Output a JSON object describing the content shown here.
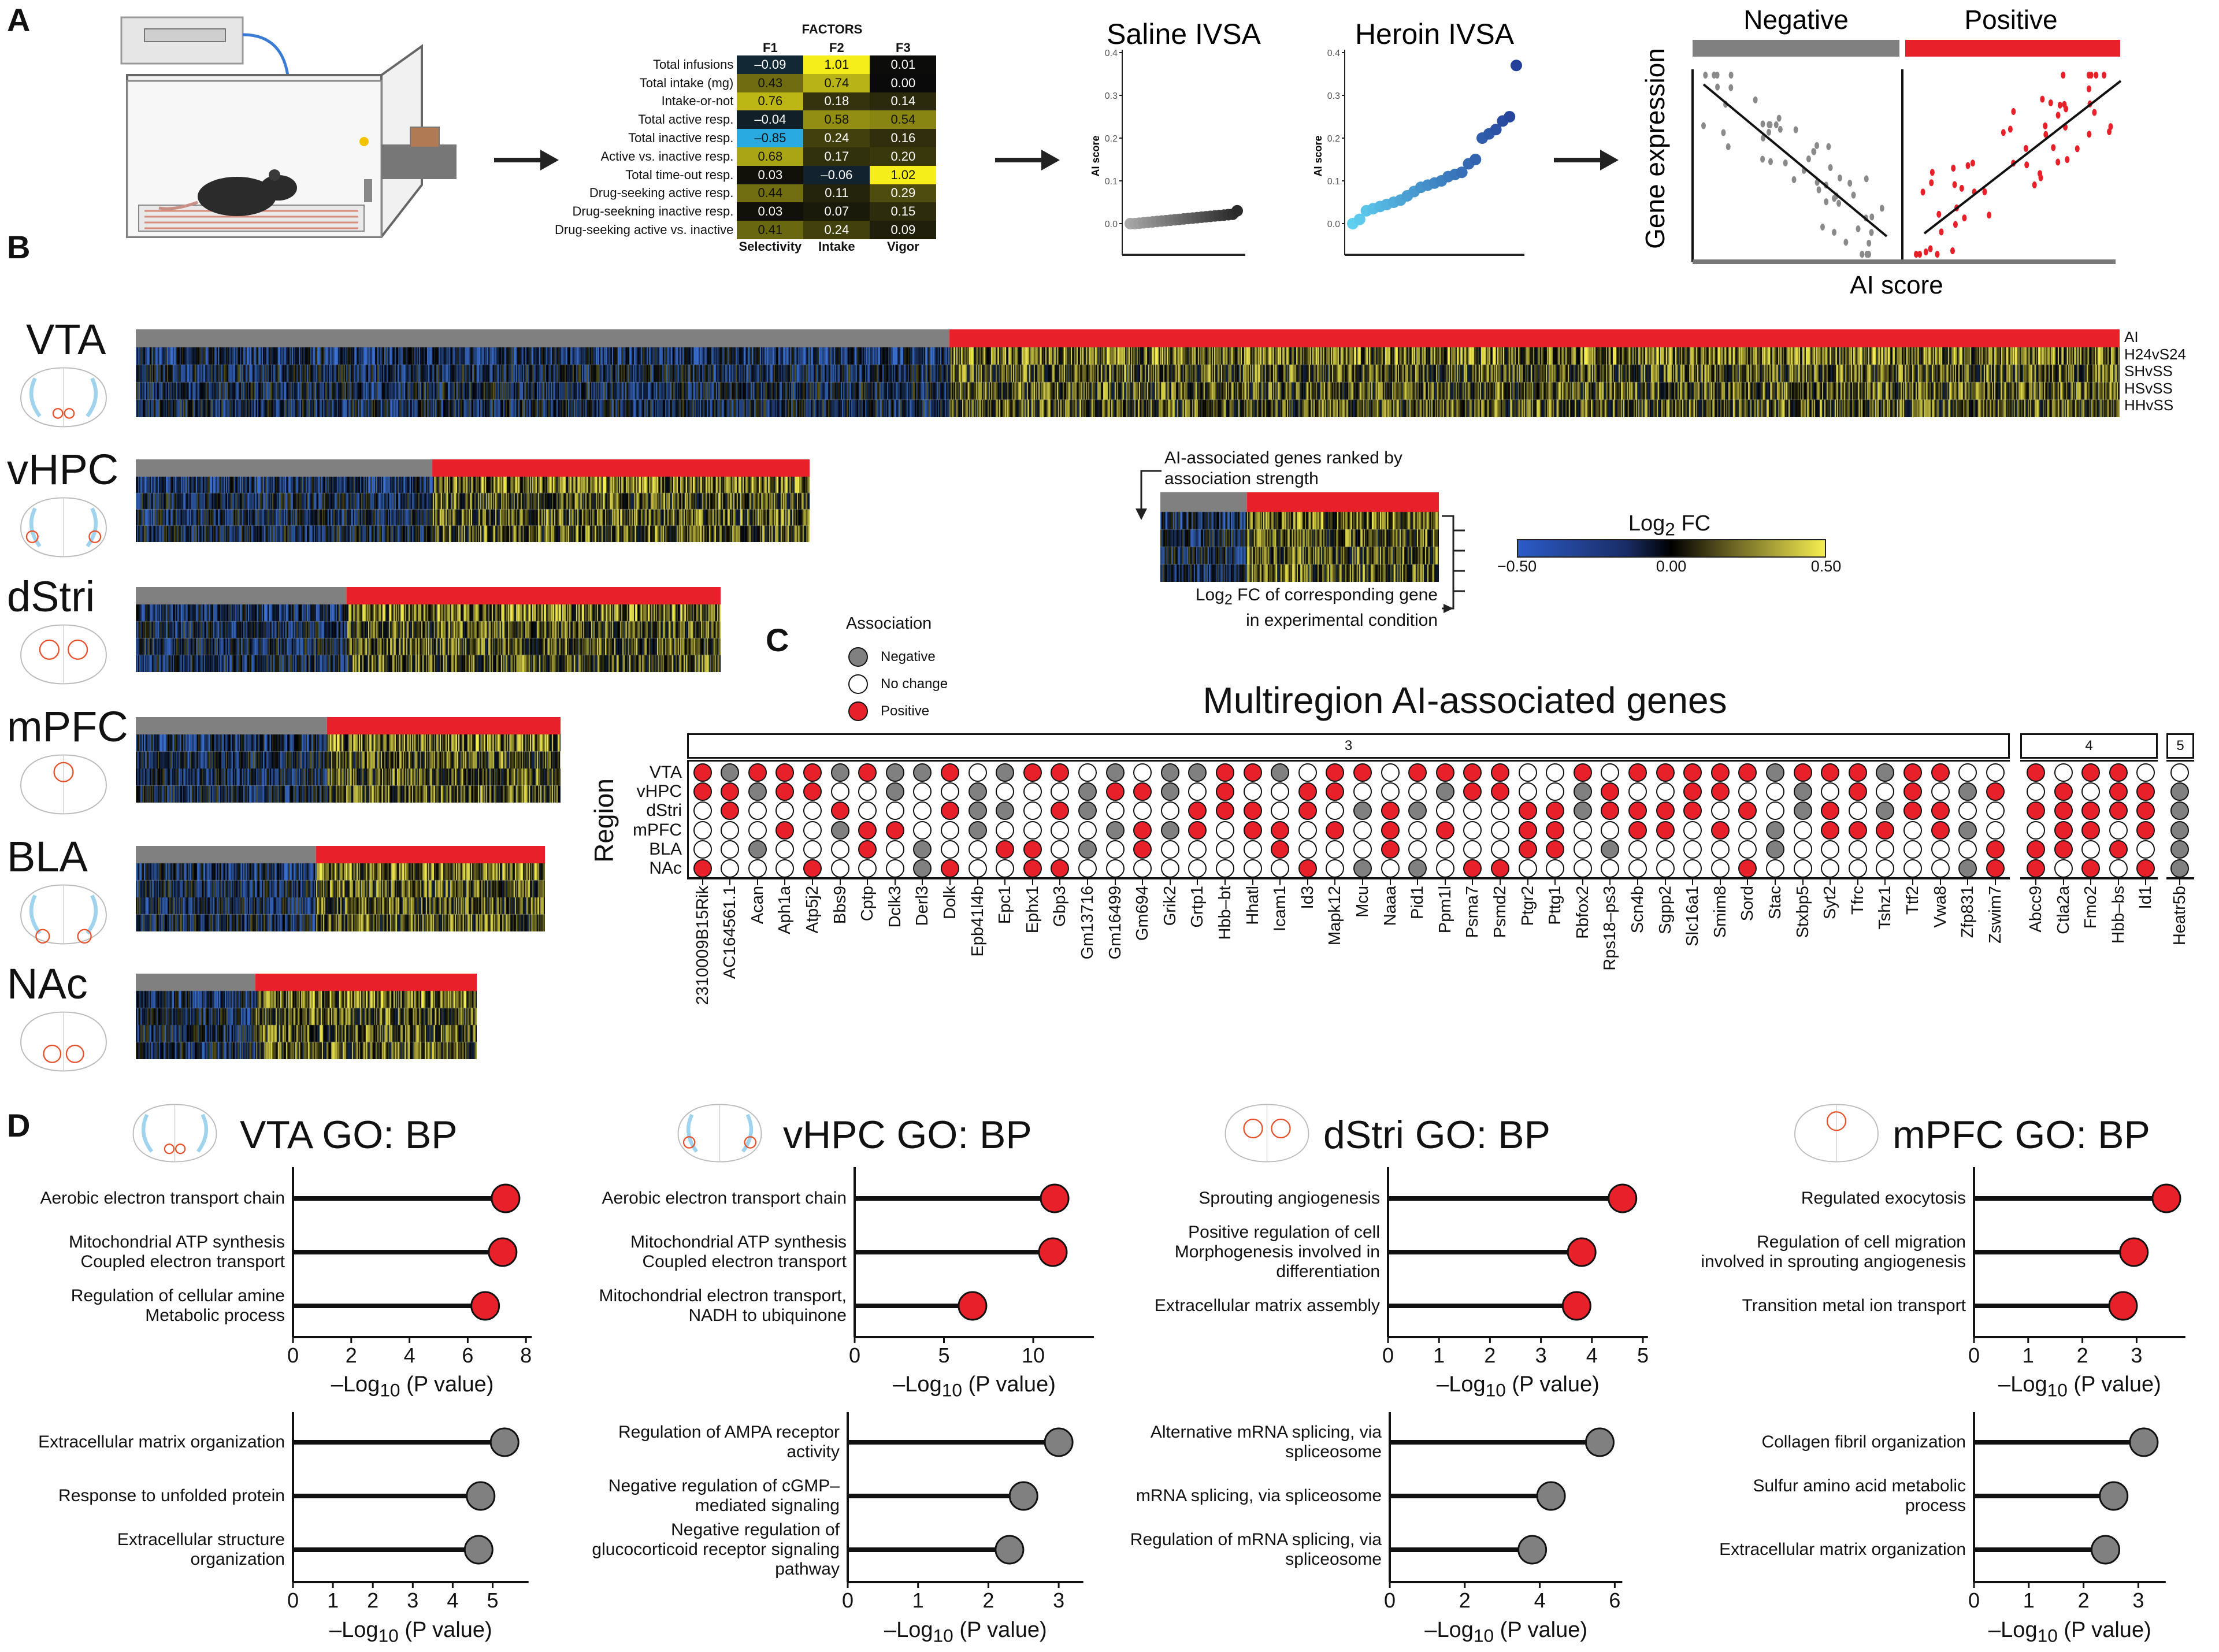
{
  "panel_labels": {
    "a": "A",
    "b": "B",
    "c": "C",
    "d": "D"
  },
  "colors": {
    "positive": "#e8202a",
    "negative": "#808080",
    "no_change": "#ffffff",
    "heat_low": "#3b6fd0",
    "heat_mid": "#000000",
    "heat_high": "#f5ee50"
  },
  "factors": {
    "title": "FACTORS",
    "columns": [
      "F1",
      "F2",
      "F3"
    ],
    "factor_names": [
      "Selectivity",
      "Intake",
      "Vigor"
    ],
    "rows": [
      {
        "label": "Total infusions",
        "values": [
          -0.09,
          1.01,
          0.01
        ]
      },
      {
        "label": "Total intake (mg)",
        "values": [
          0.43,
          0.74,
          0.0
        ]
      },
      {
        "label": "Intake-or-not",
        "values": [
          0.76,
          0.18,
          0.14
        ]
      },
      {
        "label": "Total active resp.",
        "values": [
          -0.04,
          0.58,
          0.54
        ]
      },
      {
        "label": "Total inactive resp.",
        "values": [
          -0.85,
          0.24,
          0.16
        ]
      },
      {
        "label": "Active vs. inactive resp.",
        "values": [
          0.68,
          0.17,
          0.2
        ]
      },
      {
        "label": "Total time-out resp.",
        "values": [
          0.03,
          -0.06,
          1.02
        ]
      },
      {
        "label": "Drug-seeking active resp.",
        "values": [
          0.44,
          0.11,
          0.29
        ]
      },
      {
        "label": "Drug-seekning inactive resp.",
        "values": [
          0.03,
          0.07,
          0.15
        ]
      },
      {
        "label": "Drug-seeking active vs. inactive",
        "values": [
          0.41,
          0.24,
          0.09
        ]
      }
    ]
  },
  "schematic": {
    "negative_label": "Negative",
    "positive_label": "Positive",
    "y_label": "Gene expression",
    "x_label": "AI score"
  },
  "heatmap_legend": {
    "ranked_line1": "AI-associated genes ranked by",
    "ranked_line2": "association strength",
    "fc_line1_prefix": "Log",
    "fc_line1_sub": "2",
    "fc_line1_suffix": " FC of corresponding gene",
    "fc_line2": "in experimental condition",
    "colorbar_title_prefix": "Log",
    "colorbar_title_sub": "2",
    "colorbar_title_suffix": " FC",
    "colorbar_ticks": [
      "−0.50",
      "0.00",
      "0.50"
    ]
  },
  "heatmaps": [
    {
      "region": "VTA",
      "negative_fraction": 0.41,
      "row_labels": [
        "AI",
        "H24vS24",
        "SHvSS",
        "HSvSS",
        "HHvSS"
      ]
    },
    {
      "region": "vHPC",
      "negative_fraction": 0.44
    },
    {
      "region": "dStri",
      "negative_fraction": 0.36
    },
    {
      "region": "mPFC",
      "negative_fraction": 0.45
    },
    {
      "region": "BLA",
      "negative_fraction": 0.44
    },
    {
      "region": "NAc",
      "negative_fraction": 0.35
    }
  ],
  "chart_data": [
    {
      "type": "scatter",
      "title": "Saline IVSA",
      "ylabel": "AI score",
      "yticks": [
        "0.0",
        "0.1",
        "0.2",
        "0.3",
        "0.4"
      ],
      "ylim": [
        -0.03,
        0.42
      ],
      "values": [
        0.0,
        0.0,
        0.001,
        0.002,
        0.003,
        0.004,
        0.005,
        0.006,
        0.007,
        0.008,
        0.009,
        0.01,
        0.011,
        0.012,
        0.013,
        0.014,
        0.015,
        0.016,
        0.017,
        0.018,
        0.019,
        0.02,
        0.021,
        0.022,
        0.03
      ]
    },
    {
      "type": "scatter",
      "title": "Heroin IVSA",
      "ylabel": "AI score",
      "yticks": [
        "0.0",
        "0.1",
        "0.2",
        "0.3",
        "0.4"
      ],
      "ylim": [
        -0.03,
        0.42
      ],
      "values": [
        0.0,
        0.01,
        0.03,
        0.035,
        0.04,
        0.045,
        0.05,
        0.055,
        0.065,
        0.075,
        0.085,
        0.09,
        0.095,
        0.1,
        0.11,
        0.115,
        0.12,
        0.14,
        0.15,
        0.2,
        0.21,
        0.22,
        0.24,
        0.25,
        0.37
      ]
    },
    {
      "type": "table",
      "title": "Multiregion AI-associated genes",
      "ylabel": "Region",
      "legend": {
        "title": "Association",
        "items": [
          {
            "label": "Negative",
            "state": "G"
          },
          {
            "label": "No change",
            "state": "W"
          },
          {
            "label": "Positive",
            "state": "R"
          }
        ]
      },
      "regions": [
        "VTA",
        "vHPC",
        "dStri",
        "mPFC",
        "BLA",
        "NAc"
      ],
      "state_order": "VTA,vHPC,dStri,mPFC,BLA,NAc; R=Positive G=Negative W=No change",
      "groups": [
        {
          "label": "3",
          "genes": [
            {
              "gene": "2310009B15Rik",
              "states": "RRWWWR"
            },
            {
              "gene": "AC164561.1",
              "states": "GRRWWW"
            },
            {
              "gene": "Acan",
              "states": "RGWWGW"
            },
            {
              "gene": "Aph1a",
              "states": "RRWRWW"
            },
            {
              "gene": "Atp5j2",
              "states": "RRWWWR"
            },
            {
              "gene": "Bbs9",
              "states": "GWRGWW"
            },
            {
              "gene": "Cptp",
              "states": "RWWRRW"
            },
            {
              "gene": "Dclk3",
              "states": "GGWRWW"
            },
            {
              "gene": "Derl3",
              "states": "GWWWGG"
            },
            {
              "gene": "Dolk",
              "states": "RWRWWR"
            },
            {
              "gene": "Epb41l4b",
              "states": "WGGGWW"
            },
            {
              "gene": "Epc1",
              "states": "GWGWRW"
            },
            {
              "gene": "Ephx1",
              "states": "RWWWRR"
            },
            {
              "gene": "Gbp3",
              "states": "RWRWWR"
            },
            {
              "gene": "Gm13716",
              "states": "WGGWGW"
            },
            {
              "gene": "Gm16499",
              "states": "GRWGWW"
            },
            {
              "gene": "Gm694",
              "states": "WRWRRW"
            },
            {
              "gene": "Grik2",
              "states": "GGWGWW"
            },
            {
              "gene": "Grtp1",
              "states": "GWRRWW"
            },
            {
              "gene": "Hbb–bt",
              "states": "RRRWWW"
            },
            {
              "gene": "Hhatl",
              "states": "RWRRWW"
            },
            {
              "gene": "Icam1",
              "states": "GWWRRW"
            },
            {
              "gene": "Id3",
              "states": "WRRWWR"
            },
            {
              "gene": "Mapk12",
              "states": "RRWRWW"
            },
            {
              "gene": "Mcu",
              "states": "RWGWWG"
            },
            {
              "gene": "Naaa",
              "states": "WWRRRW"
            },
            {
              "gene": "Pid1",
              "states": "RWGWWG"
            },
            {
              "gene": "Ppm1l",
              "states": "RGWRWW"
            },
            {
              "gene": "Psma7",
              "states": "RRWWWR"
            },
            {
              "gene": "Psmd2",
              "states": "RRWWWR"
            },
            {
              "gene": "Ptgr2",
              "states": "WWRRRW"
            },
            {
              "gene": "Pttg1",
              "states": "WWRRRW"
            },
            {
              "gene": "Rbfox2",
              "states": "RGGWWW"
            },
            {
              "gene": "Rps18–ps3",
              "states": "WRRWGW"
            },
            {
              "gene": "Scn4b",
              "states": "RWRRWW"
            },
            {
              "gene": "Sgpp2",
              "states": "RWRRWW"
            },
            {
              "gene": "Slc16a1",
              "states": "RRRWWW"
            },
            {
              "gene": "Smim8",
              "states": "RRWRWW"
            },
            {
              "gene": "Sord",
              "states": "RWRWWR"
            },
            {
              "gene": "Stac",
              "states": "GWWGGW"
            },
            {
              "gene": "Stxbp5",
              "states": "RGGWWW"
            },
            {
              "gene": "Syt2",
              "states": "RWRRWW"
            },
            {
              "gene": "Tfrc",
              "states": "RRWRWW"
            },
            {
              "gene": "Tshz1",
              "states": "GWGRWW"
            },
            {
              "gene": "Ttf2",
              "states": "RRRWWW"
            },
            {
              "gene": "Vwa8",
              "states": "RWRRWW"
            },
            {
              "gene": "Zfp831",
              "states": "WGWGWG"
            },
            {
              "gene": "Zswim7",
              "states": "WRWWRR"
            }
          ]
        },
        {
          "label": "4",
          "genes": [
            {
              "gene": "Abcc9",
              "states": "RWRWRR"
            },
            {
              "gene": "Ctla2a",
              "states": "WRRRRW"
            },
            {
              "gene": "Fmo2",
              "states": "RWRRWR"
            },
            {
              "gene": "Hbb–bs",
              "states": "RRRWRW"
            },
            {
              "gene": "Id1",
              "states": "WRRRWR"
            }
          ]
        },
        {
          "label": "5",
          "genes": [
            {
              "gene": "Heatr5b",
              "states": "WGGGGG"
            }
          ]
        }
      ]
    },
    {
      "type": "bar",
      "title": "VTA GO: BP",
      "xlabel": "–Log10 (P value)",
      "subplots": [
        {
          "association": "Positive",
          "categories": [
            "Aerobic electron transport chain",
            "Mitochondrial ATP synthesis\nCoupled electron transport",
            "Regulation of cellular amine\nMetabolic process"
          ],
          "values": [
            7.3,
            7.2,
            6.6
          ],
          "xticks": [
            "0",
            "2",
            "4",
            "6",
            "8"
          ],
          "xlim": [
            0,
            8.2
          ]
        },
        {
          "association": "Negative",
          "categories": [
            "Extracellular matrix organization",
            "Response to unfolded protein",
            "Extracellular structure\norganization"
          ],
          "values": [
            5.3,
            4.7,
            4.65
          ],
          "xticks": [
            "0",
            "1",
            "2",
            "3",
            "4",
            "5"
          ],
          "xlim": [
            0,
            5.9
          ]
        }
      ]
    },
    {
      "type": "bar",
      "title": "vHPC GO: BP",
      "xlabel": "–Log10 (P value)",
      "subplots": [
        {
          "association": "Positive",
          "categories": [
            "Aerobic electron transport chain",
            "Mitochondrial ATP synthesis\nCoupled electron transport",
            "Mitochondrial electron transport,\nNADH to ubiquinone"
          ],
          "values": [
            11.2,
            11.1,
            6.6
          ],
          "xticks": [
            "0",
            "5",
            "10"
          ],
          "xlim": [
            0,
            13.4
          ]
        },
        {
          "association": "Negative",
          "categories": [
            "Regulation of AMPA receptor\nactivity",
            "Negative regulation of cGMP–\nmediated signaling",
            "Negative regulation of\nglucocorticoid receptor signaling\npathway"
          ],
          "values": [
            3.0,
            2.5,
            2.3
          ],
          "xticks": [
            "0",
            "1",
            "2",
            "3"
          ],
          "xlim": [
            0,
            3.35
          ]
        }
      ]
    },
    {
      "type": "bar",
      "title": "dStri GO: BP",
      "xlabel": "–Log10 (P value)",
      "subplots": [
        {
          "association": "Positive",
          "categories": [
            "Sprouting angiogenesis",
            "Positive regulation of cell\nMorphogenesis involved in\ndifferentiation",
            "Extracellular matrix assembly"
          ],
          "values": [
            4.6,
            3.8,
            3.7
          ],
          "xticks": [
            "0",
            "1",
            "2",
            "3",
            "4",
            "5"
          ],
          "xlim": [
            0,
            5.1
          ]
        },
        {
          "association": "Negative",
          "categories": [
            "Alternative mRNA splicing, via\nspliceosome",
            "mRNA splicing, via spliceosome",
            "Regulation of mRNA splicing, via\nspliceosome"
          ],
          "values": [
            5.6,
            4.3,
            3.8
          ],
          "xticks": [
            "0",
            "2",
            "4",
            "6"
          ],
          "xlim": [
            0,
            6.2
          ]
        }
      ]
    },
    {
      "type": "bar",
      "title": "mPFC GO: BP",
      "xlabel": "–Log10 (P value)",
      "subplots": [
        {
          "association": "Positive",
          "categories": [
            "Regulated exocytosis",
            "Regulation of cell migration\ninvolved in sprouting angiogenesis",
            "Transition metal ion transport"
          ],
          "values": [
            3.55,
            2.95,
            2.75
          ],
          "xticks": [
            "0",
            "1",
            "2",
            "3"
          ],
          "xlim": [
            0,
            3.9
          ]
        },
        {
          "association": "Negative",
          "categories": [
            "Collagen fibril organization",
            "Sulfur amino acid metabolic\nprocess",
            "Extracellular matrix organization"
          ],
          "values": [
            3.1,
            2.55,
            2.4
          ],
          "xticks": [
            "0",
            "1",
            "2",
            "3"
          ],
          "xlim": [
            0,
            3.5
          ]
        }
      ]
    }
  ]
}
